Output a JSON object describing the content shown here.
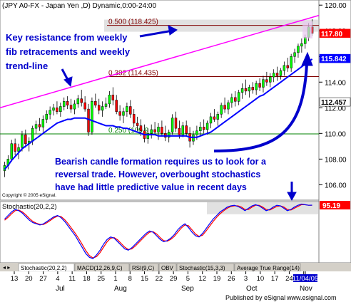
{
  "chart_data": [
    {
      "type": "candlestick",
      "title": "(JPY A0-FX - Japan Yen ,D) Dynamic,0:00-24:00",
      "copyright": "Copyright © 2005 eSignal.",
      "x_axis": {
        "day_ticks": [
          "13",
          "20",
          "27",
          "4",
          "11",
          "18",
          "25",
          "1",
          "8",
          "15",
          "22",
          "29",
          "5",
          "12",
          "19",
          "26",
          "3",
          "10",
          "17",
          "24",
          "31",
          "11/04/05"
        ],
        "month_labels": [
          "Jul",
          "Aug",
          "Sep",
          "Oct",
          "Nov"
        ]
      },
      "y_axis": {
        "ticks": [
          106.0,
          108.0,
          110.0,
          112.0,
          114.0,
          116.0,
          118.0,
          120.0
        ],
        "ylim": [
          104.8,
          120.4
        ],
        "price_flags": [
          {
            "text": "117.80",
            "value": 117.8,
            "color": "#ff0000"
          },
          {
            "text": "115.842",
            "value": 115.842,
            "color": "#0000ff"
          },
          {
            "text": "112.457",
            "value": 112.457,
            "color": "#ffffff"
          }
        ]
      },
      "fib_levels": [
        {
          "label": "0.500 (118.425)",
          "value": 118.425,
          "color": "#800000"
        },
        {
          "label": "0.382 (114.435)",
          "value": 114.435,
          "color": "#800000"
        },
        {
          "label": "0.250 (109.966)",
          "display": "0.250 (109.9",
          "value": 109.966,
          "color": "#008000"
        }
      ],
      "trendline": {
        "color": "#ff00ff",
        "from": 112.0,
        "to": 119.2
      },
      "ohlc": [
        [
          107.1,
          107.8,
          106.6,
          107.5
        ],
        [
          107.5,
          108.3,
          107.2,
          108.0
        ],
        [
          108.0,
          109.5,
          107.8,
          109.2
        ],
        [
          109.2,
          109.6,
          108.3,
          108.6
        ],
        [
          108.6,
          109.2,
          108.0,
          108.9
        ],
        [
          108.9,
          110.2,
          108.6,
          109.9
        ],
        [
          109.9,
          110.3,
          108.9,
          109.2
        ],
        [
          109.2,
          109.7,
          108.6,
          109.4
        ],
        [
          109.4,
          110.6,
          109.1,
          110.4
        ],
        [
          110.4,
          111.0,
          110.0,
          110.7
        ],
        [
          110.7,
          111.2,
          110.2,
          110.5
        ],
        [
          110.5,
          111.4,
          110.1,
          111.1
        ],
        [
          111.1,
          111.8,
          110.8,
          111.5
        ],
        [
          111.5,
          112.1,
          111.1,
          111.8
        ],
        [
          111.8,
          112.3,
          111.4,
          112.0
        ],
        [
          112.0,
          112.5,
          111.5,
          111.7
        ],
        [
          111.7,
          112.4,
          111.3,
          112.1
        ],
        [
          112.1,
          112.8,
          111.8,
          112.5
        ],
        [
          112.5,
          112.9,
          111.9,
          112.2
        ],
        [
          112.2,
          112.7,
          111.6,
          111.9
        ],
        [
          111.9,
          112.6,
          111.5,
          112.3
        ],
        [
          112.3,
          113.0,
          112.0,
          112.7
        ],
        [
          112.7,
          113.4,
          112.1,
          112.4
        ],
        [
          112.4,
          112.9,
          111.7,
          111.9
        ],
        [
          111.9,
          112.3,
          109.8,
          110.1
        ],
        [
          110.1,
          112.8,
          109.9,
          112.5
        ],
        [
          112.5,
          113.1,
          112.0,
          112.2
        ],
        [
          112.2,
          112.7,
          111.5,
          111.8
        ],
        [
          111.8,
          112.5,
          111.3,
          112.1
        ],
        [
          112.1,
          112.8,
          111.9,
          112.3
        ],
        [
          112.3,
          113.3,
          112.0,
          113.0
        ],
        [
          113.0,
          113.6,
          112.2,
          112.6
        ],
        [
          112.6,
          113.0,
          111.5,
          111.7
        ],
        [
          111.7,
          112.2,
          111.0,
          111.4
        ],
        [
          111.4,
          112.0,
          110.8,
          111.7
        ],
        [
          111.7,
          112.4,
          111.3,
          112.1
        ],
        [
          112.1,
          112.6,
          111.2,
          111.5
        ],
        [
          111.5,
          111.9,
          110.5,
          110.8
        ],
        [
          110.8,
          111.3,
          110.2,
          110.6
        ],
        [
          110.6,
          111.1,
          109.8,
          110.2
        ],
        [
          110.2,
          110.7,
          109.3,
          109.6
        ],
        [
          109.6,
          110.4,
          109.2,
          110.0
        ],
        [
          110.0,
          110.7,
          109.6,
          110.3
        ],
        [
          110.3,
          110.9,
          109.9,
          110.1
        ],
        [
          110.1,
          110.8,
          109.5,
          110.5
        ],
        [
          110.5,
          111.0,
          109.8,
          110.0
        ],
        [
          110.0,
          110.6,
          109.4,
          109.7
        ],
        [
          109.7,
          110.3,
          109.3,
          110.1
        ],
        [
          110.1,
          111.5,
          109.9,
          111.2
        ],
        [
          111.2,
          111.7,
          110.1,
          110.4
        ],
        [
          110.4,
          111.0,
          109.6,
          109.9
        ],
        [
          109.9,
          110.9,
          109.7,
          110.6
        ],
        [
          110.6,
          111.0,
          109.8,
          110.0
        ],
        [
          110.0,
          110.5,
          108.9,
          109.4
        ],
        [
          109.4,
          110.2,
          109.1,
          109.9
        ],
        [
          109.9,
          110.6,
          109.5,
          110.2
        ],
        [
          110.2,
          110.9,
          109.8,
          110.5
        ],
        [
          110.5,
          111.1,
          110.0,
          110.3
        ],
        [
          110.3,
          111.0,
          109.9,
          110.8
        ],
        [
          110.8,
          111.6,
          110.4,
          111.3
        ],
        [
          111.3,
          111.9,
          110.9,
          111.1
        ],
        [
          111.1,
          111.7,
          110.6,
          111.5
        ],
        [
          111.5,
          112.4,
          111.2,
          112.2
        ],
        [
          112.2,
          112.8,
          111.6,
          111.9
        ],
        [
          111.9,
          112.6,
          111.5,
          112.4
        ],
        [
          112.4,
          113.1,
          112.0,
          112.8
        ],
        [
          112.8,
          113.3,
          112.1,
          112.5
        ],
        [
          112.5,
          113.4,
          112.2,
          113.2
        ],
        [
          113.2,
          113.9,
          112.7,
          113.5
        ],
        [
          113.5,
          114.2,
          113.0,
          113.3
        ],
        [
          113.3,
          113.8,
          112.8,
          113.6
        ],
        [
          113.6,
          114.0,
          113.1,
          113.4
        ],
        [
          113.4,
          114.1,
          113.0,
          113.9
        ],
        [
          113.9,
          114.3,
          113.3,
          113.6
        ],
        [
          113.6,
          114.5,
          113.2,
          114.2
        ],
        [
          114.2,
          114.8,
          113.7,
          114.0
        ],
        [
          114.0,
          114.7,
          113.6,
          114.4
        ],
        [
          114.4,
          115.0,
          114.0,
          114.7
        ],
        [
          114.7,
          115.2,
          114.1,
          114.5
        ],
        [
          114.5,
          115.1,
          114.2,
          114.9
        ],
        [
          114.9,
          115.6,
          114.5,
          115.3
        ],
        [
          115.3,
          115.9,
          114.8,
          115.1
        ],
        [
          115.1,
          116.2,
          114.8,
          116.0
        ],
        [
          116.0,
          116.6,
          115.5,
          116.3
        ],
        [
          116.3,
          117.0,
          115.9,
          116.8
        ],
        [
          116.8,
          117.4,
          116.3,
          117.0
        ],
        [
          117.0,
          117.7,
          116.6,
          117.5
        ],
        [
          117.5,
          118.6,
          117.2,
          118.3
        ],
        [
          118.3,
          118.9,
          117.6,
          117.8
        ]
      ],
      "ma": [
        107.2,
        107.5,
        107.9,
        108.2,
        108.5,
        108.8,
        109.0,
        109.2,
        109.4,
        109.6,
        109.8,
        110.0,
        110.2,
        110.4,
        110.6,
        110.8,
        110.9,
        111.0,
        111.1,
        111.1,
        111.2,
        111.2,
        111.2,
        111.2,
        111.1,
        111.0,
        110.9,
        110.8,
        110.7,
        110.6,
        110.6,
        110.6,
        110.5,
        110.5,
        110.4,
        110.4,
        110.3,
        110.2,
        110.1,
        110.0,
        109.9,
        109.9,
        109.9,
        109.9,
        109.8,
        109.8,
        109.8,
        109.8,
        109.8,
        109.8,
        109.8,
        109.8,
        109.8,
        109.7,
        109.7,
        109.7,
        109.8,
        109.9,
        110.0,
        110.1,
        110.3,
        110.5,
        110.7,
        110.9,
        111.1,
        111.3,
        111.5,
        111.7,
        111.9,
        112.1,
        112.3,
        112.5,
        112.7,
        112.9,
        113.0,
        113.2,
        113.4,
        113.6,
        113.8,
        114.0,
        114.2,
        114.4,
        114.6,
        114.8,
        115.0,
        115.2,
        115.4,
        115.6,
        115.8
      ],
      "annotations": [
        {
          "text": "Key resistance from weekly fib retracements and weekly trend-line",
          "lines": [
            "Key resistance from weekly",
            "fib retracements and weekly",
            "trend-line"
          ]
        },
        {
          "text": "Bearish candle formation requires us to look for a reversal trade. However, overbought stochastics have had little predictive value in recent days",
          "lines": [
            "Bearish candle formation requires us to look for a",
            "reversal trade.  However, overbought stochastics",
            "have had little predictive value in recent days"
          ]
        }
      ]
    },
    {
      "type": "line",
      "title": "Stochastic(20,2,2)",
      "ylim": [
        0,
        100
      ],
      "last_value": "95.19",
      "overbought_zone_from": 80,
      "series": [
        {
          "color": "#0000ff",
          "values": [
            72,
            78,
            84,
            88,
            86,
            82,
            76,
            70,
            66,
            64,
            62,
            64,
            68,
            72,
            76,
            78,
            74,
            68,
            60,
            52,
            44,
            34,
            24,
            14,
            8,
            6,
            12,
            20,
            30,
            38,
            42,
            40,
            34,
            28,
            22,
            20,
            24,
            30,
            36,
            42,
            48,
            52,
            50,
            44,
            38,
            34,
            36,
            40,
            46,
            54,
            60,
            64,
            58,
            50,
            44,
            42,
            48,
            56,
            64,
            72,
            78,
            84,
            88,
            92,
            94,
            95,
            93,
            90,
            86,
            90,
            94,
            96,
            94,
            90,
            86,
            88,
            92,
            95,
            94,
            90,
            86,
            88,
            92,
            95,
            97,
            96,
            95,
            95.19
          ]
        },
        {
          "color": "#ff0000",
          "values": [
            70,
            75,
            81,
            86,
            87,
            84,
            79,
            73,
            68,
            65,
            63,
            63,
            66,
            70,
            74,
            77,
            76,
            71,
            64,
            56,
            48,
            39,
            29,
            19,
            11,
            7,
            9,
            16,
            25,
            34,
            40,
            41,
            37,
            31,
            25,
            21,
            22,
            27,
            33,
            39,
            45,
            50,
            51,
            47,
            41,
            36,
            35,
            38,
            43,
            50,
            57,
            62,
            61,
            54,
            47,
            43,
            45,
            52,
            60,
            68,
            75,
            81,
            86,
            90,
            93,
            94,
            94,
            92,
            88,
            88,
            92,
            95,
            95,
            92,
            88,
            87,
            90,
            93,
            94,
            92,
            88,
            87,
            90,
            93,
            96,
            96,
            95,
            95
          ]
        }
      ]
    }
  ],
  "tabs": [
    "Stochastic(20,2,2)",
    "MACD(12,26,9,C)",
    "RSI(9,C)",
    "OBV",
    "Stochastic(15,3,3)",
    "Average True Range(14)"
  ],
  "footer": {
    "text": "Published by ",
    "brand": "eSignal",
    "url": "www.esignal.com"
  },
  "colors": {
    "up": "#00ff00",
    "down": "#ff0000",
    "ma": "#0000ff",
    "trendline": "#ff00ff",
    "annotation": "#0000cc"
  }
}
